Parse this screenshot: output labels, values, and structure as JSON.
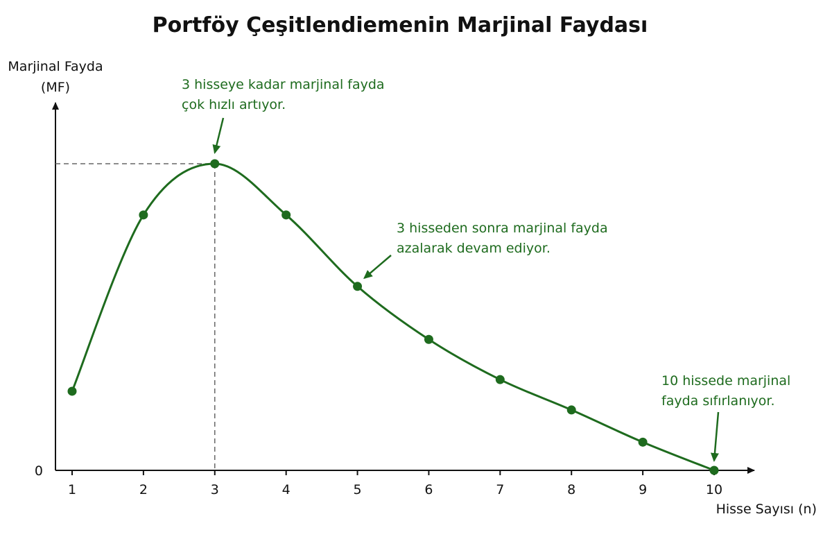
{
  "chart_data": {
    "type": "line",
    "title": "Portföy Çeşitlendiemenin Marjinal Faydası",
    "ylabel_line1": "Marjinal Fayda",
    "ylabel_line2": "(MF)",
    "xlabel": "Hisse Sayısı (n)",
    "y_zero_label": "0",
    "x": [
      1,
      2,
      3,
      4,
      5,
      6,
      7,
      8,
      9,
      10
    ],
    "x_tick_labels": [
      "1",
      "2",
      "3",
      "4",
      "5",
      "6",
      "7",
      "8",
      "9",
      "10"
    ],
    "values": [
      25.8,
      83.3,
      100,
      83.3,
      60,
      42.7,
      29.6,
      19.7,
      9.2,
      0
    ],
    "xlim": [
      1,
      10
    ],
    "ylim": [
      0,
      100
    ],
    "grid": false,
    "peak_x": 3,
    "color": "#1e6b1e",
    "annotations": [
      {
        "lines": [
          "3 hisseye kadar marjinal fayda",
          "çok hızlı artıyor."
        ],
        "target_x": 3
      },
      {
        "lines": [
          "3 hisseden sonra marjinal fayda",
          "azalarak devam ediyor."
        ],
        "target_x": 5
      },
      {
        "lines": [
          "10 hissede marjinal",
          "fayda sıfırlanıyor."
        ],
        "target_x": 10
      }
    ]
  }
}
